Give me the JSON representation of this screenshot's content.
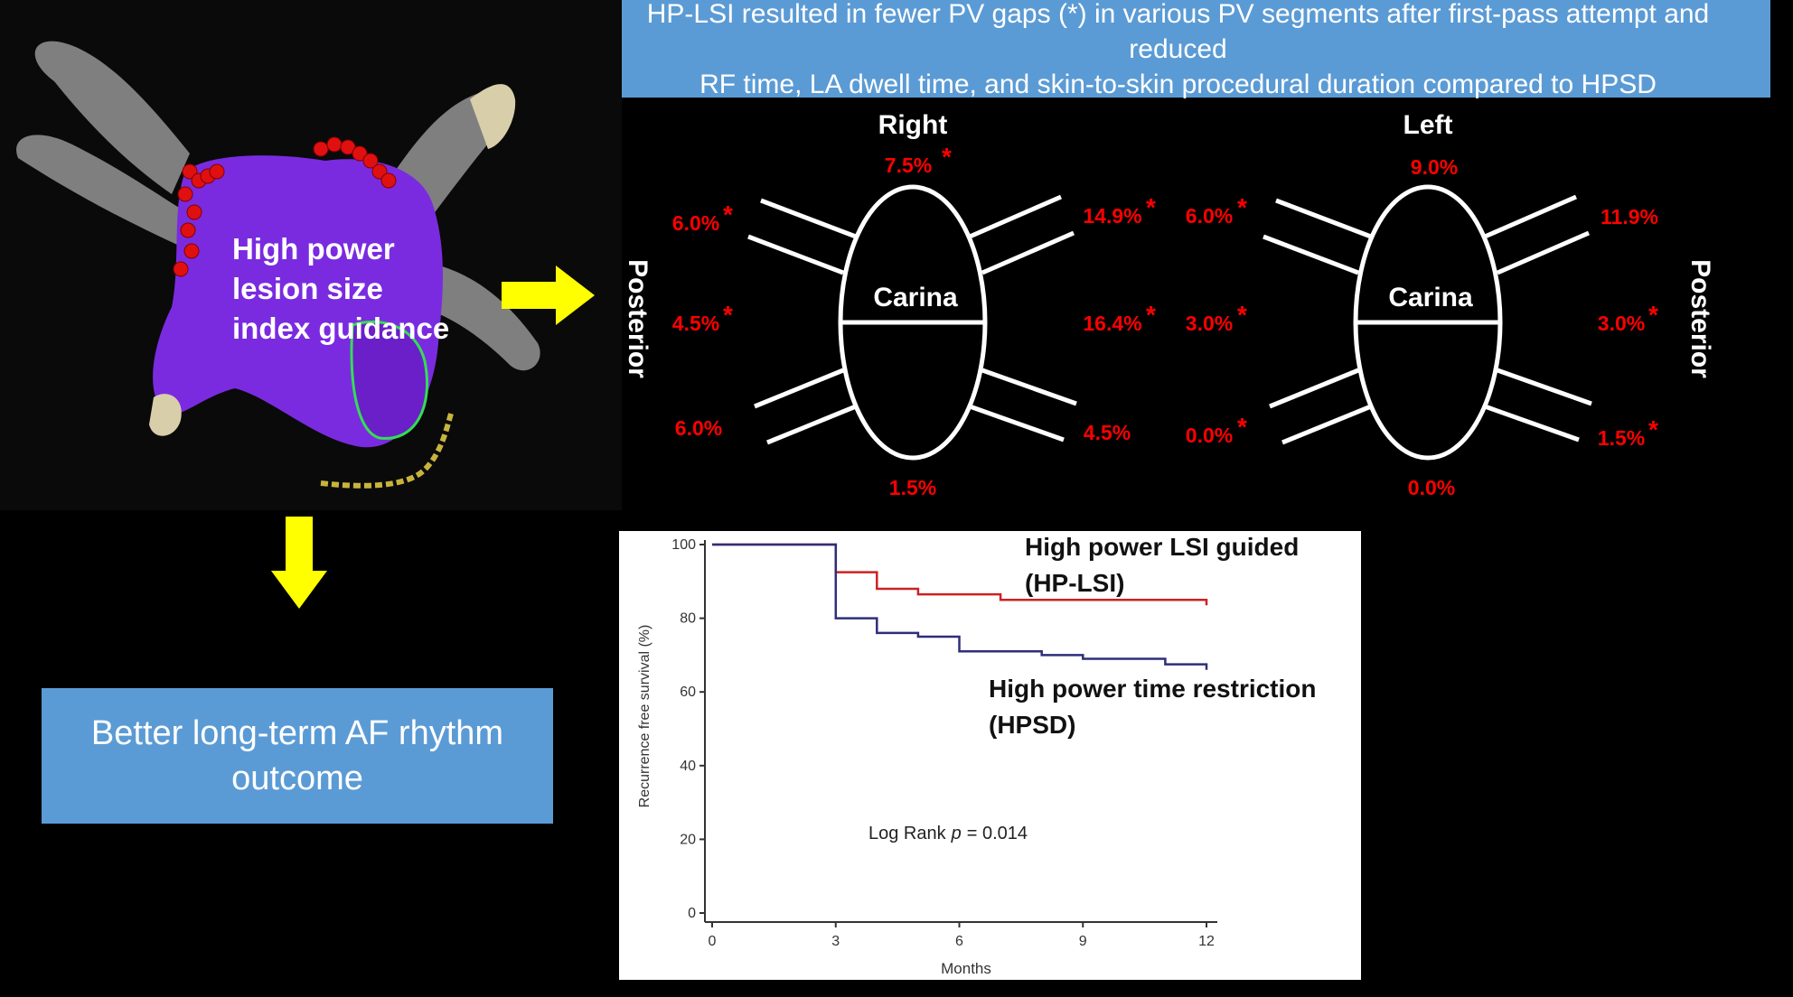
{
  "banner": {
    "line1": "HP-LSI resulted in fewer PV gaps (*) in various PV segments after first-pass attempt and reduced",
    "line2": "RF time, LA dwell time, and skin-to-skin procedural duration compared to HPSD"
  },
  "map": {
    "label_line1": "High power",
    "label_line2": "lesion size",
    "label_line3": "index guidance"
  },
  "outcome": {
    "text": "Better long-term AF rhythm outcome"
  },
  "pv_diagram": {
    "right_title": "Right",
    "left_title": "Left",
    "carina_label": "Carina",
    "posterior_label": "Posterior",
    "star": "*",
    "right": {
      "top": "7.5%",
      "upper_left": "6.0%",
      "mid_left": "4.5%",
      "lower_left": "6.0%",
      "upper_right": "14.9%",
      "mid_right": "16.4%",
      "lower_right": "4.5%",
      "bottom": "1.5%"
    },
    "left": {
      "top": "9.0%",
      "upper_left": "6.0%",
      "mid_left": "3.0%",
      "lower_left": "0.0%",
      "upper_right": "11.9%",
      "mid_right": "3.0%",
      "lower_right": "1.5%",
      "bottom": "0.0%"
    }
  },
  "colors": {
    "banner_blue": "#5b9bd5",
    "arrow_yellow": "#ffff00",
    "value_red": "#ff0000",
    "hp_lsi_line": "#cc2222",
    "hpsd_line": "#2e2e7a"
  },
  "chart_data": {
    "type": "line",
    "title": "",
    "xlabel": "Months",
    "ylabel": "Recurrence free survival (%)",
    "xlim": [
      0,
      12
    ],
    "ylim": [
      0,
      100
    ],
    "xticks": [
      "0",
      "3",
      "6",
      "9",
      "12"
    ],
    "yticks": [
      "0",
      "20",
      "40",
      "60",
      "80",
      "100"
    ],
    "annotation": "Log Rank p = 0.014",
    "annotation_prefix": "Log Rank",
    "annotation_p": "p",
    "annotation_value": "= 0.014",
    "series": [
      {
        "name": "High power LSI guided (HP-LSI)",
        "label_line1": "High power LSI guided",
        "label_line2": "(HP-LSI)",
        "color": "#cc2222",
        "x": [
          0,
          3,
          3,
          4,
          4,
          5,
          5,
          7,
          7,
          12,
          12
        ],
        "y": [
          100,
          100,
          92.5,
          92.5,
          88,
          88,
          86.5,
          86.5,
          85,
          85,
          83.5
        ]
      },
      {
        "name": "High power time restriction (HPSD)",
        "label_line1": "High power time restriction",
        "label_line2": "(HPSD)",
        "color": "#2e2e7a",
        "x": [
          0,
          3,
          3,
          4,
          4,
          5,
          5,
          6,
          6,
          8,
          8,
          9,
          9,
          11,
          11,
          12,
          12
        ],
        "y": [
          100,
          100,
          80,
          80,
          76,
          76,
          75,
          75,
          71,
          71,
          70,
          70,
          69,
          69,
          67.5,
          67.5,
          66
        ]
      }
    ]
  }
}
